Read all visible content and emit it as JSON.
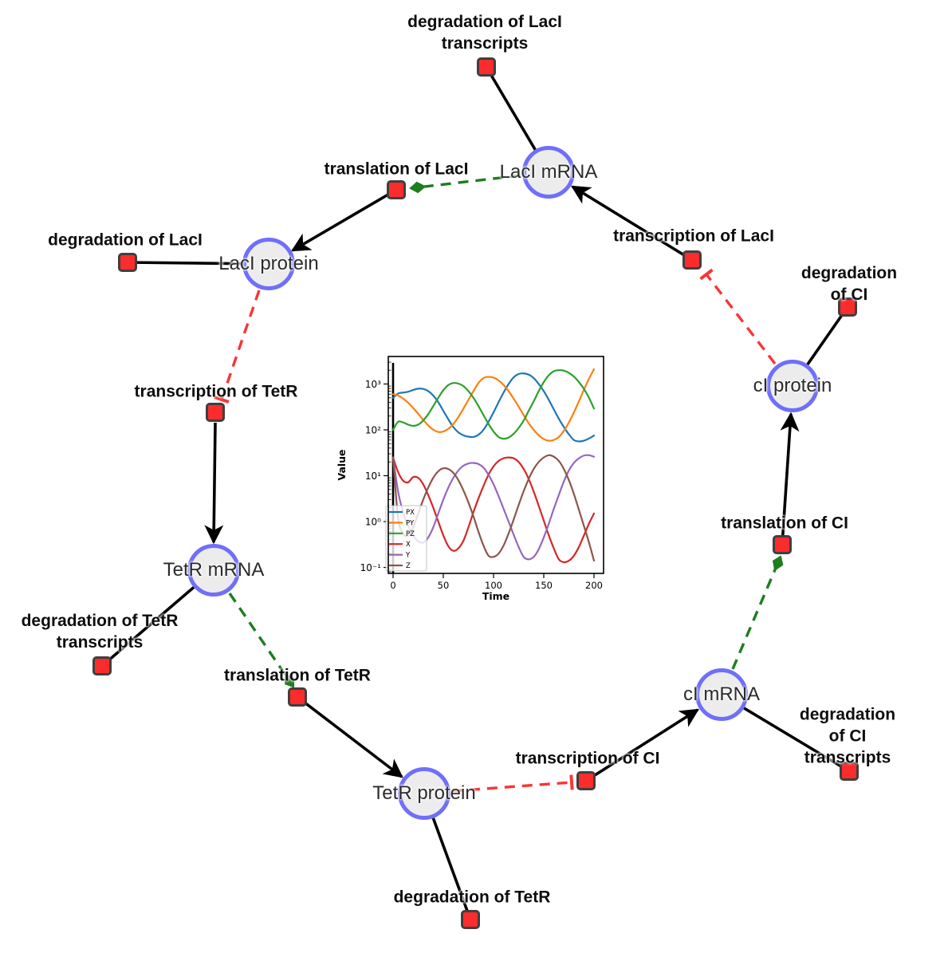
{
  "diagram": {
    "species_nodes": [
      {
        "id": "laci-mrna",
        "label": "LacI mRNA"
      },
      {
        "id": "laci-protein",
        "label": "LacI protein"
      },
      {
        "id": "tetr-mrna",
        "label": "TetR mRNA"
      },
      {
        "id": "tetr-protein",
        "label": "TetR protein"
      },
      {
        "id": "ci-mrna",
        "label": "cI mRNA"
      },
      {
        "id": "ci-protein",
        "label": "cI protein"
      }
    ],
    "reaction_nodes": [
      {
        "id": "degradation-of-laci-transcripts",
        "label": "degradation of LacI\ntranscripts"
      },
      {
        "id": "translation-of-laci",
        "label": "translation of LacI"
      },
      {
        "id": "degradation-of-laci",
        "label": "degradation of LacI"
      },
      {
        "id": "transcription-of-laci",
        "label": "transcription of LacI"
      },
      {
        "id": "degradation-of-ci",
        "label": "degradation of CI"
      },
      {
        "id": "transcription-of-tetr",
        "label": "transcription of TetR"
      },
      {
        "id": "degradation-of-tetr-transcripts",
        "label": "degradation of TetR\ntranscripts"
      },
      {
        "id": "translation-of-tetr",
        "label": "translation of TetR"
      },
      {
        "id": "degradation-of-tetr",
        "label": "degradation of TetR"
      },
      {
        "id": "transcription-of-ci",
        "label": "transcription of CI"
      },
      {
        "id": "degradation-of-ci-transcripts",
        "label": "degradation of CI\ntranscripts"
      },
      {
        "id": "translation-of-ci",
        "label": "translation of CI"
      }
    ],
    "colors": {
      "species_fill": "#ececec",
      "species_border": "#6f6ffa",
      "reaction_fill": "#fb2c2c",
      "reaction_border": "#3f3f3f",
      "edge_solid": "#000000",
      "edge_modifier": "#1e7d1e",
      "edge_inhibition": "#f93535"
    }
  },
  "chart_data": {
    "type": "line",
    "title": "",
    "xlabel": "Time",
    "ylabel": "Value",
    "y_scale": "log",
    "grid": false,
    "legend_position": "lower left",
    "x_tick_values": [
      0,
      50,
      100,
      150,
      200
    ],
    "x_tick_labels": [
      "0",
      "50",
      "100",
      "150",
      "200"
    ],
    "y_tick_log10": [
      -1,
      0,
      1,
      2,
      3
    ],
    "y_tick_labels": [
      "10⁻¹",
      "10⁰",
      "10¹",
      "10²",
      "10³"
    ],
    "xlim": [
      -5,
      209
    ],
    "ylim": [
      0.076,
      3980
    ],
    "t0_spike": true,
    "x": [
      0,
      5,
      10,
      15,
      20,
      25,
      30,
      35,
      40,
      45,
      50,
      55,
      60,
      65,
      70,
      75,
      80,
      85,
      90,
      95,
      100,
      105,
      110,
      115,
      120,
      125,
      130,
      135,
      140,
      145,
      150,
      155,
      160,
      165,
      170,
      175,
      180,
      185,
      190,
      195,
      200
    ],
    "series": [
      {
        "name": "PX",
        "color": "#1f77b4",
        "values": [
          500,
          620,
          650,
          680,
          740,
          790,
          780,
          700,
          560,
          400,
          260,
          170,
          115,
          88,
          76,
          71,
          70,
          78,
          100,
          150,
          240,
          400,
          650,
          1000,
          1400,
          1650,
          1700,
          1600,
          1350,
          1000,
          700,
          450,
          280,
          175,
          115,
          80,
          60,
          56,
          58,
          65,
          75
        ]
      },
      {
        "name": "PY",
        "color": "#ff7f0e",
        "values": [
          600,
          560,
          480,
          390,
          300,
          225,
          165,
          125,
          101,
          90,
          92,
          105,
          135,
          190,
          290,
          450,
          700,
          1050,
          1350,
          1430,
          1380,
          1200,
          950,
          700,
          480,
          320,
          210,
          140,
          100,
          76,
          63,
          58,
          60,
          70,
          95,
          145,
          240,
          420,
          750,
          1300,
          2100
        ]
      },
      {
        "name": "PZ",
        "color": "#2ca02c",
        "values": [
          100,
          150,
          145,
          130,
          122,
          130,
          160,
          220,
          330,
          500,
          730,
          950,
          1050,
          1020,
          900,
          700,
          500,
          330,
          210,
          135,
          92,
          70,
          64,
          68,
          82,
          110,
          160,
          260,
          420,
          700,
          1100,
          1550,
          1900,
          2000,
          1950,
          1750,
          1450,
          1100,
          780,
          500,
          290
        ]
      },
      {
        "name": "X",
        "color": "#d62728",
        "values": [
          25,
          12,
          7.8,
          7.2,
          9.3,
          9.0,
          6.5,
          3.8,
          2.0,
          1.0,
          0.5,
          0.29,
          0.23,
          0.26,
          0.38,
          0.75,
          1.6,
          3.2,
          6.0,
          10.5,
          16,
          21,
          24,
          25,
          24,
          20,
          14,
          8.5,
          4.5,
          2.2,
          1.05,
          0.5,
          0.26,
          0.15,
          0.13,
          0.14,
          0.18,
          0.28,
          0.5,
          0.9,
          1.5
        ]
      },
      {
        "name": "Y",
        "color": "#9467bd",
        "values": [
          25,
          4.5,
          1.6,
          0.8,
          0.5,
          0.37,
          0.35,
          0.45,
          0.75,
          1.5,
          3.0,
          5.5,
          9.0,
          13,
          16.5,
          18.5,
          19,
          18,
          15,
          10.5,
          6.5,
          3.6,
          1.9,
          1.0,
          0.52,
          0.28,
          0.17,
          0.15,
          0.17,
          0.25,
          0.45,
          0.9,
          1.9,
          3.8,
          7.5,
          13,
          19,
          24,
          27.5,
          28,
          26
        ]
      },
      {
        "name": "Z",
        "color": "#8c564b",
        "values": [
          25,
          1.2,
          0.55,
          0.5,
          0.75,
          1.5,
          3.0,
          5.5,
          9.0,
          12.5,
          14.5,
          14,
          11.5,
          8.0,
          4.8,
          2.6,
          1.3,
          0.6,
          0.3,
          0.18,
          0.17,
          0.2,
          0.3,
          0.55,
          1.1,
          2.3,
          4.6,
          8.5,
          14,
          20,
          25,
          28,
          26,
          21,
          14,
          8,
          4,
          1.8,
          0.8,
          0.35,
          0.14
        ]
      }
    ]
  }
}
